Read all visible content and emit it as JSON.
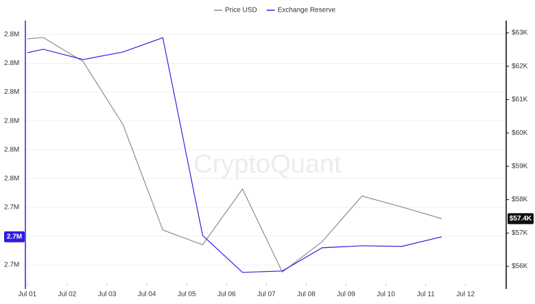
{
  "chart_data": {
    "type": "line",
    "watermark": "CryptoQuant",
    "x": [
      1,
      1.4,
      2.4,
      3.4,
      4.4,
      5.4,
      6.4,
      7.4,
      8.4,
      9.4,
      10.4,
      11.4
    ],
    "xlim": [
      0.95,
      13.02
    ],
    "xticks": [
      {
        "value": 1,
        "label": "Jul 01"
      },
      {
        "value": 2,
        "label": "Jul 02"
      },
      {
        "value": 3,
        "label": "Jul 03"
      },
      {
        "value": 4,
        "label": "Jul 04"
      },
      {
        "value": 5,
        "label": "Jul 05"
      },
      {
        "value": 6,
        "label": "Jul 06"
      },
      {
        "value": 7,
        "label": "Jul 07"
      },
      {
        "value": 8,
        "label": "Jul 08"
      },
      {
        "value": 9,
        "label": "Jul 09"
      },
      {
        "value": 10,
        "label": "Jul 10"
      },
      {
        "value": 11,
        "label": "Jul 11"
      },
      {
        "value": 12,
        "label": "Jul 12"
      }
    ],
    "ylim": [
      2737800,
      2773000
    ],
    "yticks": [
      {
        "value": 2772000,
        "label": "2.8M"
      },
      {
        "value": 2768000,
        "label": "2.8M"
      },
      {
        "value": 2764000,
        "label": "2.8M"
      },
      {
        "value": 2760000,
        "label": "2.8M"
      },
      {
        "value": 2756000,
        "label": "2.8M"
      },
      {
        "value": 2752000,
        "label": "2.8M"
      },
      {
        "value": 2748000,
        "label": "2.7M"
      },
      {
        "value": 2744000,
        "label": "2.7M"
      },
      {
        "value": 2740000,
        "label": "2.7M"
      }
    ],
    "y2lim": [
      55570,
      63164
    ],
    "y2ticks": [
      {
        "value": 63000,
        "label": "$63K"
      },
      {
        "value": 62000,
        "label": "$62K"
      },
      {
        "value": 61000,
        "label": "$61K"
      },
      {
        "value": 60000,
        "label": "$60K"
      },
      {
        "value": 59000,
        "label": "$59K"
      },
      {
        "value": 58000,
        "label": "$58K"
      },
      {
        "value": 57000,
        "label": "$57K"
      },
      {
        "value": 56000,
        "label": "$56K"
      }
    ],
    "grid": true,
    "legend": "top",
    "series": [
      {
        "name": "Price USD",
        "color": "#8a8a8a",
        "axis": "y2",
        "values": [
          62820,
          62860,
          62140,
          60250,
          57090,
          56650,
          58320,
          55830,
          56740,
          58110,
          57780,
          57430
        ],
        "value_labels": [
          null,
          null,
          null,
          null,
          null,
          null,
          null,
          null,
          null,
          null,
          null,
          "$57.4K"
        ]
      },
      {
        "name": "Exchange Reserve",
        "color": "#2f1de0",
        "axis": "y",
        "values": [
          2769480,
          2769960,
          2768530,
          2769580,
          2771570,
          2744090,
          2738960,
          2739150,
          2742380,
          2742660,
          2742570,
          2743900
        ],
        "value_labels": [
          null,
          null,
          null,
          null,
          null,
          null,
          null,
          null,
          null,
          null,
          null,
          "2.7M"
        ]
      }
    ]
  }
}
